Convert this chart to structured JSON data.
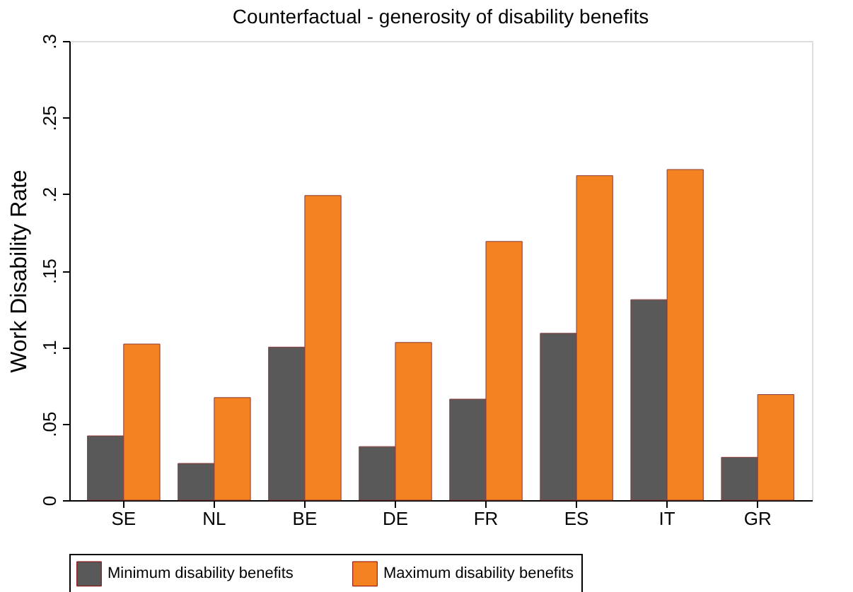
{
  "chart_data": {
    "type": "bar",
    "title": "Counterfactual - generosity of disability benefits",
    "ylabel": "Work Disability Rate",
    "categories": [
      "SE",
      "NL",
      "BE",
      "DE",
      "FR",
      "ES",
      "IT",
      "GR"
    ],
    "series": [
      {
        "name": "Minimum disability benefits",
        "color": "#595959",
        "values": [
          0.042,
          0.024,
          0.1,
          0.035,
          0.066,
          0.109,
          0.131,
          0.028
        ]
      },
      {
        "name": "Maximum disability benefits",
        "color": "#f58220",
        "values": [
          0.102,
          0.067,
          0.199,
          0.103,
          0.169,
          0.212,
          0.216,
          0.069
        ]
      }
    ],
    "ylim": [
      0,
      0.3
    ],
    "yticks": [
      0,
      {
        "value": 0.05,
        "label": ".05"
      },
      {
        "value": 0.1,
        "label": ".1"
      },
      {
        "value": 0.15,
        "label": ".15"
      },
      {
        "value": 0.2,
        "label": ".2"
      },
      {
        "value": 0.25,
        "label": ".25"
      },
      {
        "value": 0.3,
        "label": ".3"
      }
    ],
    "grid": false,
    "legend": "bottom"
  }
}
